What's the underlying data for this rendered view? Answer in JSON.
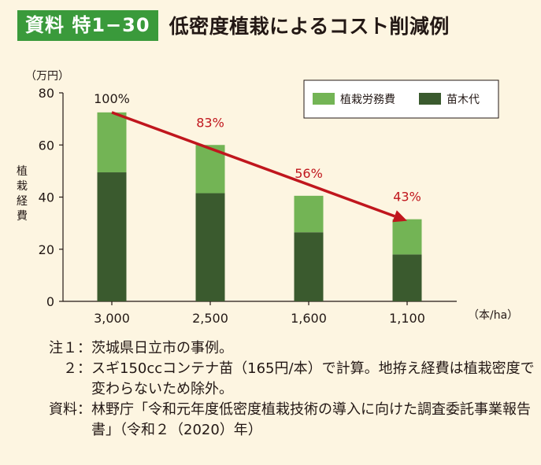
{
  "header": {
    "badge": "資料 特1−30",
    "title": "低密度植栽によるコスト削減例"
  },
  "colors": {
    "labor": "#73b455",
    "seedling": "#3a5a2e",
    "arrow": "#c0161d",
    "badge": "#3a9a3b"
  },
  "chart_data": {
    "type": "bar",
    "stacked": true,
    "categories": [
      "3,000",
      "2,500",
      "1,600",
      "1,100"
    ],
    "series": [
      {
        "name": "苗木代",
        "values": [
          49.5,
          41.5,
          26.5,
          18
        ]
      },
      {
        "name": "植栽労務費",
        "values": [
          23,
          18.5,
          14,
          13.5
        ]
      }
    ],
    "legend": [
      "植栽労務費",
      "苗木代"
    ],
    "percent_labels": [
      "100%",
      "83%",
      "56%",
      "43%"
    ],
    "ylabel": "植栽経費",
    "yunit": "（万円）",
    "xunit": "（本/ha）",
    "ylim": [
      0,
      80
    ],
    "yticks": [
      0,
      20,
      40,
      60,
      80
    ]
  },
  "notes": [
    {
      "label": "注１",
      "text": "茨城県日立市の事例。"
    },
    {
      "label": "２",
      "text": "スギ150ccコンテナ苗（165円/本）で計算。地拵え経費は植栽密度で変わらないため除外。"
    },
    {
      "label": "資料",
      "text": "林野庁「令和元年度低密度植栽技術の導入に向けた調査委託事業報告書」（令和２（2020）年）"
    }
  ]
}
